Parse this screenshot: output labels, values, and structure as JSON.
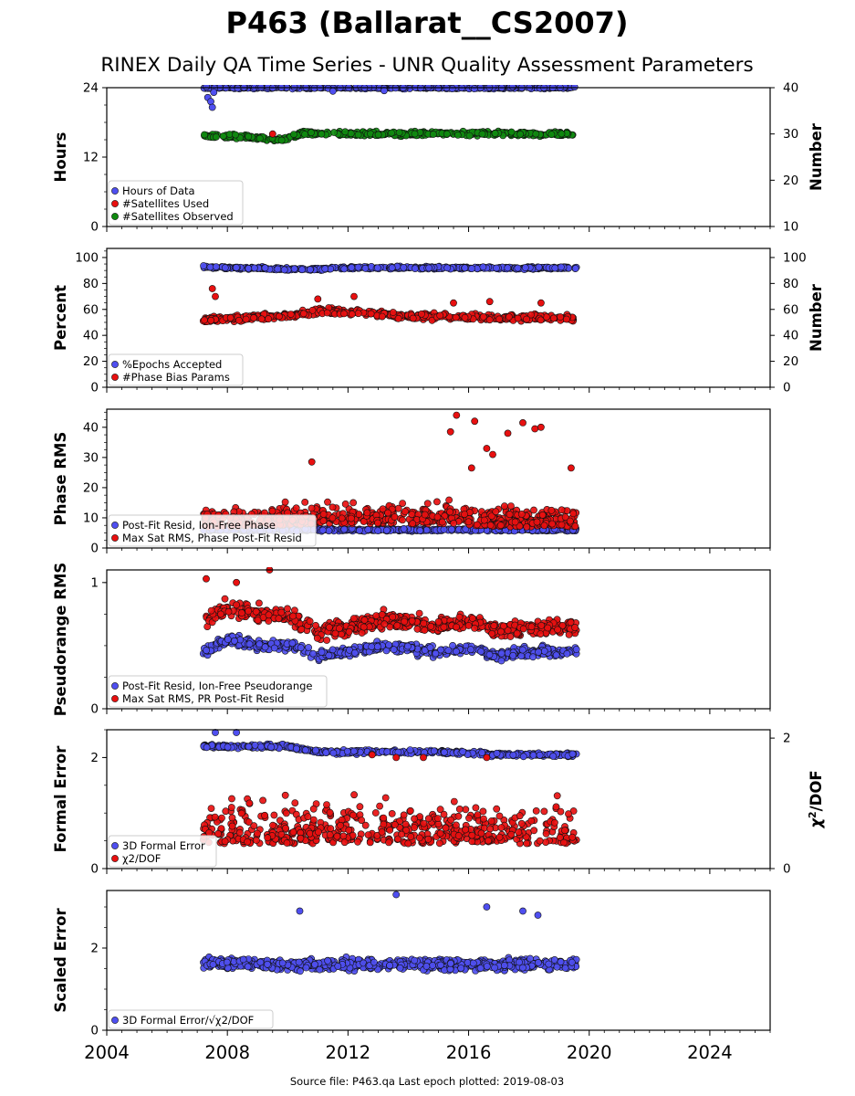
{
  "figure": {
    "title": "P463 (Ballarat__CS2007)",
    "subtitle": "RINEX Daily QA Time Series - UNR Quality Assessment Parameters",
    "footer": "Source file: P463.qa Last epoch plotted: 2019-08-03",
    "x_ticks": [
      "2004",
      "2008",
      "2012",
      "2016",
      "2020",
      "2024"
    ],
    "colors": {
      "blue": "#4f4ff0",
      "red": "#e81010",
      "green": "#0f8a0f"
    }
  },
  "chart_data": [
    {
      "type": "scatter",
      "panel": "hours",
      "ylabel": "Hours",
      "ylabel_right": "Number",
      "xlim": [
        2004,
        2026
      ],
      "ylim": [
        0,
        24
      ],
      "yticks": [
        "0",
        "12",
        "24"
      ],
      "ylim_right": [
        10,
        40
      ],
      "yticks_right": [
        "10",
        "20",
        "30",
        "40"
      ],
      "legend": [
        "Hours of Data",
        "#Satellites Used",
        "#Satellites Observed"
      ],
      "legend_loc": "lower-left",
      "series": [
        {
          "name": "Hours of Data",
          "color": "blue",
          "axis": "left",
          "x": [
            2007.2,
            2007.5,
            2008.0,
            2010.0,
            2012.0,
            2014.0,
            2016.0,
            2018.0,
            2019.58
          ],
          "y": [
            24,
            24,
            24,
            24,
            24,
            24,
            24,
            24,
            24
          ],
          "outliers": [
            [
              2007.35,
              22.3
            ],
            [
              2007.45,
              21.6
            ],
            [
              2007.5,
              20.6
            ],
            [
              2007.55,
              23.2
            ],
            [
              2011.5,
              23.4
            ],
            [
              2013.2,
              23.5
            ]
          ]
        },
        {
          "name": "#Satellites Observed",
          "color": "green",
          "axis": "right",
          "x": [
            2007.2,
            2008.0,
            2009.0,
            2009.5,
            2010.0,
            2010.6,
            2012.0,
            2014.0,
            2016.0,
            2018.0,
            2019.58
          ],
          "y": [
            29.5,
            29.5,
            29.2,
            28.7,
            29.0,
            30.2,
            30.0,
            30.0,
            30.1,
            30.0,
            30.0
          ]
        },
        {
          "name": "#Satellites Used",
          "color": "red",
          "axis": "right",
          "x": [
            2009.5
          ],
          "y": [
            30.0
          ]
        }
      ]
    },
    {
      "type": "scatter",
      "panel": "percent",
      "ylabel": "Percent",
      "ylabel_right": "Number",
      "xlim": [
        2004,
        2026
      ],
      "ylim": [
        0,
        107
      ],
      "yticks": [
        "0",
        "20",
        "40",
        "60",
        "80",
        "100"
      ],
      "yticks_right": [
        "0",
        "20",
        "40",
        "60",
        "80",
        "100"
      ],
      "legend": [
        "%Epochs Accepted",
        "#Phase Bias Params"
      ],
      "legend_loc": "lower-left",
      "series": [
        {
          "name": "%Epochs Accepted",
          "color": "blue",
          "x": [
            2007.2,
            2008.0,
            2009.0,
            2010.0,
            2011.0,
            2012.0,
            2014.0,
            2016.0,
            2018.0,
            2019.58
          ],
          "y": [
            93,
            92,
            92,
            91,
            91,
            92,
            92,
            92,
            92,
            92
          ]
        },
        {
          "name": "#Phase Bias Params",
          "color": "red",
          "x": [
            2007.2,
            2008.0,
            2009.0,
            2010.0,
            2011.0,
            2012.0,
            2013.0,
            2014.0,
            2016.0,
            2018.0,
            2019.58
          ],
          "y": [
            52,
            53,
            54,
            55,
            59,
            58,
            56,
            55,
            54,
            54,
            53
          ],
          "outliers": [
            [
              2007.5,
              76
            ],
            [
              2007.6,
              70
            ],
            [
              2011.0,
              68
            ],
            [
              2012.2,
              70
            ],
            [
              2015.5,
              65
            ],
            [
              2016.7,
              66
            ],
            [
              2018.4,
              65
            ]
          ]
        }
      ]
    },
    {
      "type": "scatter",
      "panel": "phase-rms",
      "ylabel": "Phase RMS",
      "xlim": [
        2004,
        2026
      ],
      "ylim": [
        0,
        46
      ],
      "yticks": [
        "0",
        "10",
        "20",
        "30",
        "40"
      ],
      "legend": [
        "Post-Fit Resid, Ion-Free Phase",
        "Max Sat RMS, Phase Post-Fit Resid"
      ],
      "legend_loc": "lower-left",
      "series": [
        {
          "name": "Post-Fit Resid, Ion-Free Phase",
          "color": "blue",
          "x": [
            2007.2,
            2010.0,
            2013.0,
            2016.0,
            2019.58
          ],
          "y": [
            6,
            6,
            6,
            6,
            6
          ]
        },
        {
          "name": "Max Sat RMS, Phase Post-Fit Resid",
          "color": "red",
          "x": [
            2007.2,
            2009.0,
            2011.0,
            2013.0,
            2015.0,
            2017.0,
            2019.58
          ],
          "y": [
            11,
            11,
            12,
            12,
            12,
            11,
            11
          ],
          "outliers": [
            [
              2010.8,
              28.5
            ],
            [
              2015.4,
              38.5
            ],
            [
              2015.6,
              44
            ],
            [
              2016.1,
              26.5
            ],
            [
              2016.2,
              42
            ],
            [
              2016.6,
              33
            ],
            [
              2016.8,
              31
            ],
            [
              2017.3,
              38
            ],
            [
              2017.8,
              41.5
            ],
            [
              2018.2,
              39.5
            ],
            [
              2018.4,
              40
            ],
            [
              2019.4,
              26.5
            ]
          ]
        }
      ]
    },
    {
      "type": "scatter",
      "panel": "pseudorange-rms",
      "ylabel": "Pseudorange RMS",
      "xlim": [
        2004,
        2026
      ],
      "ylim": [
        0,
        1.1
      ],
      "yticks": [
        "0",
        "1"
      ],
      "legend": [
        "Post-Fit Resid, Ion-Free Pseudorange",
        "Max Sat RMS, PR Post-Fit Resid"
      ],
      "legend_loc": "lower-left",
      "series": [
        {
          "name": "Post-Fit Resid, Ion-Free Pseudorange",
          "color": "blue",
          "x": [
            2007.2,
            2008.0,
            2009.0,
            2010.0,
            2011.0,
            2012.0,
            2013.0,
            2014.0,
            2015.0,
            2016.0,
            2017.0,
            2018.0,
            2019.58
          ],
          "y": [
            0.45,
            0.55,
            0.5,
            0.5,
            0.42,
            0.45,
            0.5,
            0.48,
            0.45,
            0.48,
            0.42,
            0.45,
            0.45
          ]
        },
        {
          "name": "Max Sat RMS, PR Post-Fit Resid",
          "color": "red",
          "x": [
            2007.2,
            2008.0,
            2009.0,
            2010.0,
            2011.0,
            2012.0,
            2013.0,
            2014.0,
            2015.0,
            2016.0,
            2017.0,
            2018.0,
            2019.58
          ],
          "y": [
            0.7,
            0.8,
            0.75,
            0.75,
            0.6,
            0.65,
            0.7,
            0.7,
            0.65,
            0.7,
            0.62,
            0.65,
            0.65
          ],
          "outliers": [
            [
              2007.3,
              1.03
            ],
            [
              2008.3,
              1.0
            ],
            [
              2009.4,
              1.1
            ]
          ]
        }
      ]
    },
    {
      "type": "scatter",
      "panel": "formal-error",
      "ylabel": "Formal Error",
      "ylabel_right": "χ2/DOF",
      "xlim": [
        2004,
        2026
      ],
      "ylim": [
        0,
        2.5
      ],
      "yticks": [
        "0",
        "2"
      ],
      "yticks_right": [
        "0",
        "2"
      ],
      "legend": [
        "3D Formal Error",
        "χ2/DOF"
      ],
      "legend_loc": "lower-left",
      "series": [
        {
          "name": "3D Formal Error",
          "color": "blue",
          "x": [
            2007.2,
            2009.0,
            2010.0,
            2011.0,
            2013.0,
            2015.0,
            2017.0,
            2019.58
          ],
          "y": [
            2.2,
            2.2,
            2.2,
            2.1,
            2.1,
            2.1,
            2.05,
            2.05
          ],
          "outliers": [
            [
              2007.6,
              2.45
            ],
            [
              2008.3,
              2.45
            ]
          ]
        },
        {
          "name": "χ2/DOF",
          "color": "red",
          "x": [
            2007.2,
            2009.0,
            2011.0,
            2013.0,
            2015.0,
            2017.0,
            2019.58
          ],
          "y": [
            0.75,
            0.75,
            0.75,
            0.75,
            0.75,
            0.75,
            0.75
          ],
          "outliers": [
            [
              2012.8,
              2.05
            ],
            [
              2013.6,
              2.0
            ],
            [
              2014.5,
              2.0
            ],
            [
              2016.6,
              2.0
            ]
          ]
        }
      ]
    },
    {
      "type": "scatter",
      "panel": "scaled-error",
      "ylabel": "Scaled Error",
      "xlim": [
        2004,
        2026
      ],
      "ylim": [
        0,
        3.4
      ],
      "yticks": [
        "0",
        "2"
      ],
      "legend": [
        "3D Formal Error/√χ2/DOF"
      ],
      "legend_loc": "lower-left",
      "series": [
        {
          "name": "3D Formal Error/√χ2/DOF",
          "color": "blue",
          "x": [
            2007.2,
            2009.0,
            2011.0,
            2013.0,
            2015.0,
            2017.0,
            2019.58
          ],
          "y": [
            1.65,
            1.6,
            1.6,
            1.6,
            1.6,
            1.6,
            1.6
          ],
          "outliers": [
            [
              2010.4,
              2.9
            ],
            [
              2013.6,
              3.3
            ],
            [
              2016.6,
              3.0
            ],
            [
              2017.8,
              2.9
            ],
            [
              2018.3,
              2.8
            ]
          ]
        }
      ]
    }
  ]
}
